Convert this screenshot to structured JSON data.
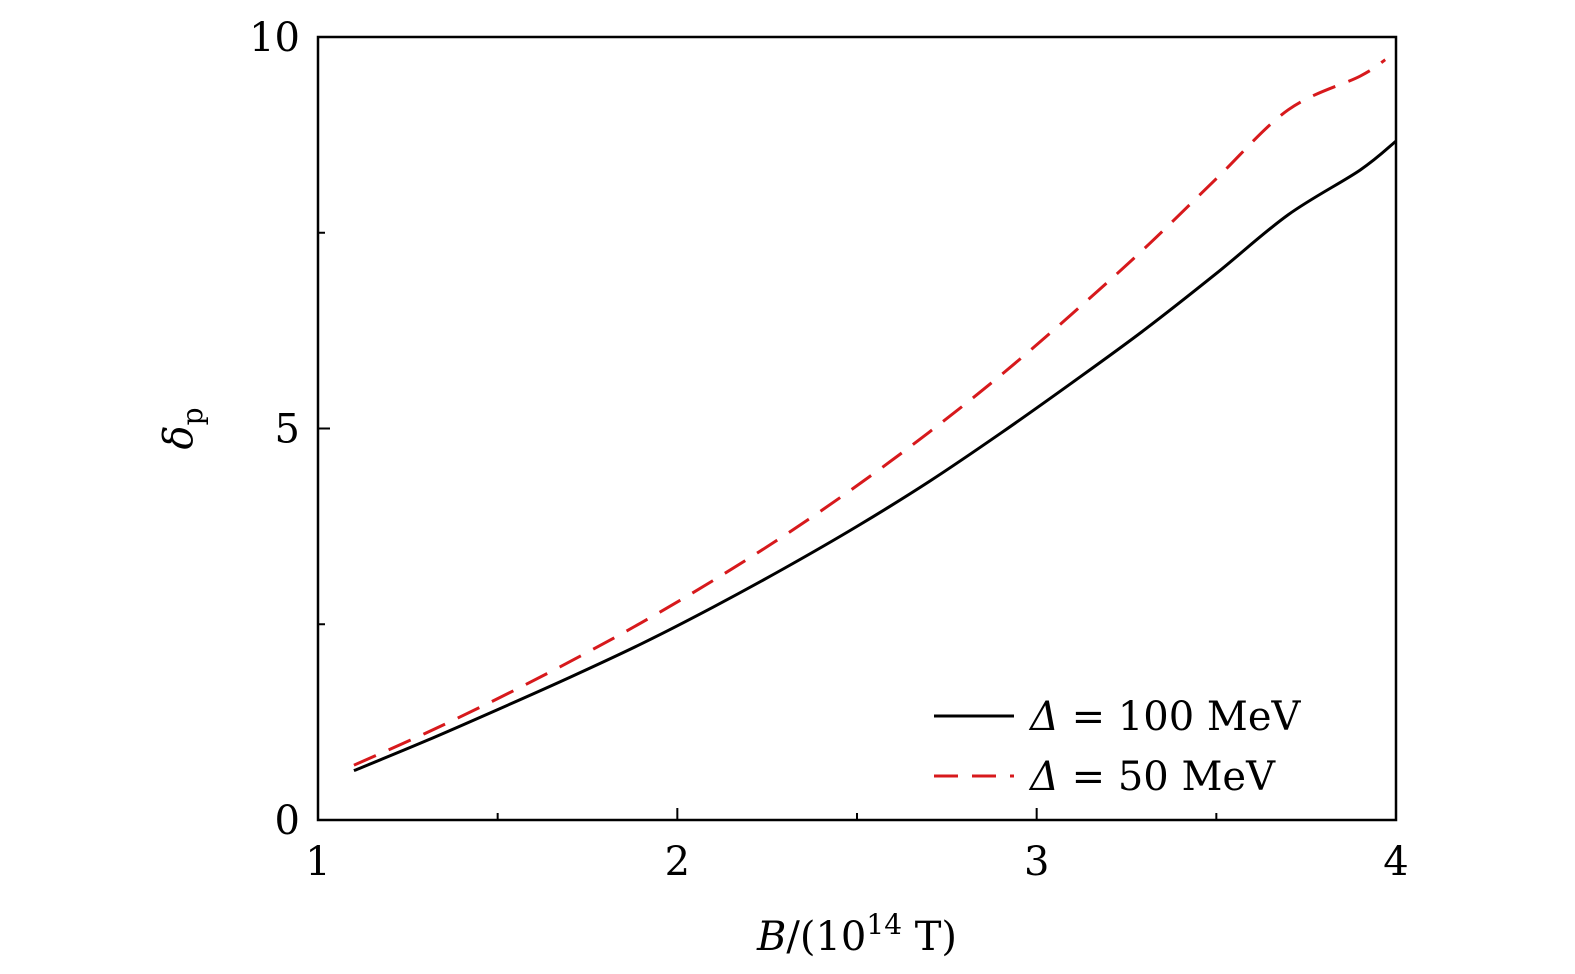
{
  "chart_data": {
    "type": "line",
    "title": "",
    "xlabel": "B/(10^14 T)",
    "xlabel_parts": {
      "var": "B",
      "pre": "/(10",
      "sup": "14",
      "post": " T)"
    },
    "ylabel": "δp",
    "ylabel_parts": {
      "base": "δ",
      "sub": "p"
    },
    "xlim": [
      1,
      4
    ],
    "ylim": [
      0,
      10
    ],
    "x_ticks": [
      1,
      2,
      3,
      4
    ],
    "x_tick_labels": [
      "1",
      "2",
      "3",
      "4"
    ],
    "x_minor_ticks": [
      1.5,
      2.5,
      3.5
    ],
    "y_ticks": [
      0,
      5,
      10
    ],
    "y_tick_labels": [
      "0",
      "5",
      "10"
    ],
    "y_minor_ticks": [
      2.5,
      7.5
    ],
    "grid": false,
    "legend_position": "bottom-right",
    "series": [
      {
        "name": "Δ = 100 MeV",
        "name_parts": {
          "sym": "Δ",
          "rest": " = 100 MeV"
        },
        "color": "#000000",
        "style": "solid",
        "x": [
          1.1,
          1.3,
          1.5,
          1.7,
          1.9,
          2.1,
          2.3,
          2.5,
          2.7,
          2.9,
          3.1,
          3.3,
          3.5,
          3.7,
          3.9,
          4.0
        ],
        "y": [
          0.63,
          1.01,
          1.41,
          1.82,
          2.25,
          2.72,
          3.22,
          3.75,
          4.32,
          4.94,
          5.59,
          6.26,
          6.98,
          7.73,
          8.3,
          8.67
        ]
      },
      {
        "name": "Δ = 50 MeV",
        "name_parts": {
          "sym": "Δ",
          "rest": " = 50 MeV"
        },
        "color": "#d7191c",
        "style": "dashed",
        "x": [
          1.1,
          1.3,
          1.5,
          1.7,
          1.9,
          2.1,
          2.3,
          2.5,
          2.7,
          2.9,
          3.1,
          3.3,
          3.5,
          3.7,
          3.9,
          3.97
        ],
        "y": [
          0.7,
          1.11,
          1.55,
          2.02,
          2.52,
          3.06,
          3.64,
          4.27,
          4.95,
          5.68,
          6.47,
          7.3,
          8.19,
          9.07,
          9.5,
          9.71
        ]
      }
    ]
  },
  "colors": {
    "axis": "#000000",
    "background": "#ffffff"
  }
}
